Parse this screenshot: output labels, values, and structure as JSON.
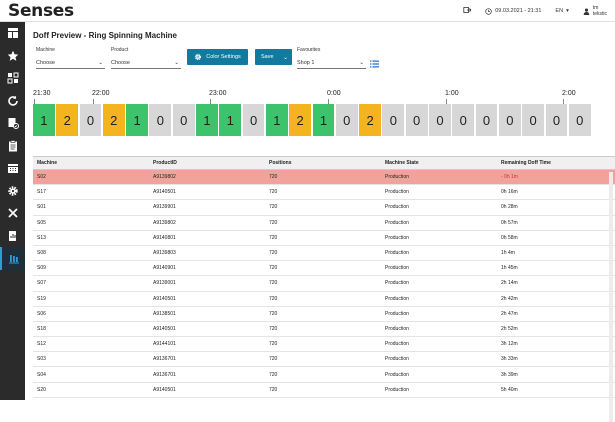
{
  "app": {
    "name": "Senses"
  },
  "header": {
    "datetime": "09.03.2021 - 21:31",
    "language": "EN",
    "user_line1": "tm",
    "user_line2": "tekstic"
  },
  "sidebar": {
    "items": [
      {
        "icon": "dashboard-icon"
      },
      {
        "icon": "star-icon"
      },
      {
        "icon": "grid-icon"
      },
      {
        "icon": "refresh-icon"
      },
      {
        "icon": "document-check-icon"
      },
      {
        "icon": "clipboard-icon"
      },
      {
        "icon": "calendar-icon"
      },
      {
        "icon": "gear-icon"
      },
      {
        "icon": "tools-icon"
      },
      {
        "icon": "report-icon"
      },
      {
        "icon": "spinning-machine-icon"
      }
    ],
    "active_index": 10,
    "active_color": "#2a9fd6"
  },
  "page": {
    "title": "Doff Preview - Ring Spinning Machine"
  },
  "filters": {
    "machine_label": "Machine",
    "machine_value": "Choose",
    "product_label": "Product",
    "product_value": "Choose",
    "color_settings_label": "Color Settings",
    "save_label": "Save",
    "favourites_label": "Favourites",
    "favourites_value": "Shop 1"
  },
  "timeline": {
    "ticks": [
      "21:30",
      "22:00",
      "23:00",
      "0:00",
      "1:00",
      "2:00"
    ],
    "cells": [
      {
        "value": "1",
        "color": "green"
      },
      {
        "value": "2",
        "color": "yellow"
      },
      {
        "value": "0",
        "color": "gray"
      },
      {
        "value": "2",
        "color": "yellow"
      },
      {
        "value": "1",
        "color": "green"
      },
      {
        "value": "0",
        "color": "gray"
      },
      {
        "value": "0",
        "color": "gray"
      },
      {
        "value": "1",
        "color": "green"
      },
      {
        "value": "1",
        "color": "green"
      },
      {
        "value": "0",
        "color": "gray"
      },
      {
        "value": "1",
        "color": "green"
      },
      {
        "value": "2",
        "color": "yellow"
      },
      {
        "value": "1",
        "color": "green"
      },
      {
        "value": "0",
        "color": "gray"
      },
      {
        "value": "2",
        "color": "yellow"
      },
      {
        "value": "0",
        "color": "gray"
      },
      {
        "value": "0",
        "color": "gray"
      },
      {
        "value": "0",
        "color": "gray"
      },
      {
        "value": "0",
        "color": "gray"
      },
      {
        "value": "0",
        "color": "gray"
      },
      {
        "value": "0",
        "color": "gray"
      },
      {
        "value": "0",
        "color": "gray"
      },
      {
        "value": "0",
        "color": "gray"
      },
      {
        "value": "0",
        "color": "gray"
      }
    ],
    "colors": {
      "green": "#3cc36c",
      "yellow": "#f4b420",
      "gray": "#d7d7d7"
    }
  },
  "table": {
    "headers": [
      "Machine",
      "ProductID",
      "Positions",
      "Machine State",
      "Remaining Doff Time"
    ],
    "rows": [
      [
        "S02",
        "A9139802",
        "720",
        "Production",
        "- 0h 1m"
      ],
      [
        "S17",
        "A9140501",
        "720",
        "Production",
        "0h 16m"
      ],
      [
        "S01",
        "A9139901",
        "720",
        "Production",
        "0h 28m"
      ],
      [
        "S05",
        "A9139802",
        "720",
        "Production",
        "0h 57m"
      ],
      [
        "S13",
        "A9140801",
        "720",
        "Production",
        "0h 58m"
      ],
      [
        "S08",
        "A9139803",
        "720",
        "Production",
        "1h 4m"
      ],
      [
        "S09",
        "A9140901",
        "720",
        "Production",
        "1h 45m"
      ],
      [
        "S07",
        "A9139001",
        "720",
        "Production",
        "2h 14m"
      ],
      [
        "S19",
        "A9140501",
        "720",
        "Production",
        "2h 42m"
      ],
      [
        "S06",
        "A9138501",
        "720",
        "Production",
        "2h 47m"
      ],
      [
        "S18",
        "A9140501",
        "720",
        "Production",
        "2h 52m"
      ],
      [
        "S12",
        "A9144101",
        "720",
        "Production",
        "3h 12m"
      ],
      [
        "S03",
        "A9136701",
        "720",
        "Production",
        "3h 33m"
      ],
      [
        "S04",
        "A9136701",
        "720",
        "Production",
        "3h 39m"
      ],
      [
        "S20",
        "A9140501",
        "720",
        "Production",
        "5h 40m"
      ]
    ],
    "alert_row_index": 0,
    "alert_color": "#f1a39b"
  }
}
